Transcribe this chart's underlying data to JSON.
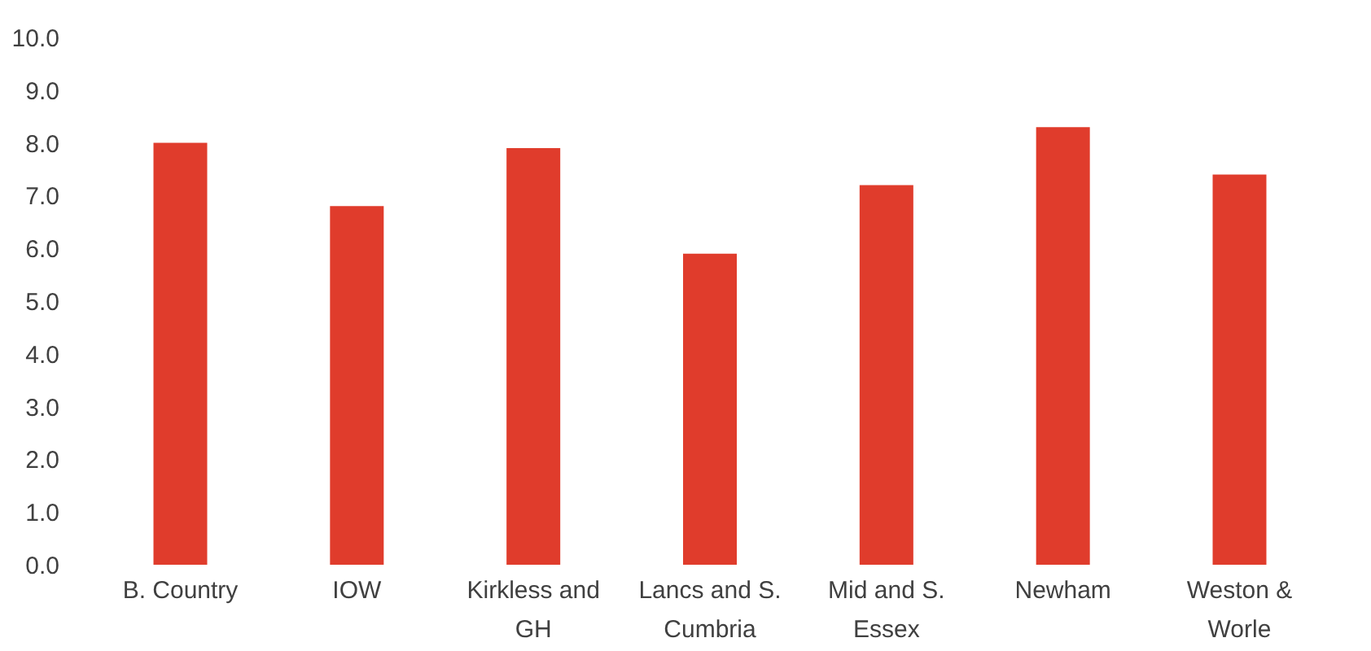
{
  "chart_data": {
    "type": "bar",
    "categories": [
      "B. Country",
      "IOW",
      "Kirkless and GH",
      "Lancs and S. Cumbria",
      "Mid and S. Essex",
      "Newham",
      "Weston & Worle"
    ],
    "values": [
      8.0,
      6.8,
      7.9,
      5.9,
      7.2,
      8.3,
      7.4
    ],
    "color": "#e03c2c",
    "ylim": [
      0,
      10
    ],
    "yticks": [
      {
        "value": 0,
        "label": "0.0"
      },
      {
        "value": 1,
        "label": "1.0"
      },
      {
        "value": 2,
        "label": "2.0"
      },
      {
        "value": 3,
        "label": "3.0"
      },
      {
        "value": 4,
        "label": "4.0"
      },
      {
        "value": 5,
        "label": "5.0"
      },
      {
        "value": 6,
        "label": "6.0"
      },
      {
        "value": 7,
        "label": "7.0"
      },
      {
        "value": 8,
        "label": "8.0"
      },
      {
        "value": 9,
        "label": "9.0"
      },
      {
        "value": 10,
        "label": "10.0"
      }
    ]
  }
}
